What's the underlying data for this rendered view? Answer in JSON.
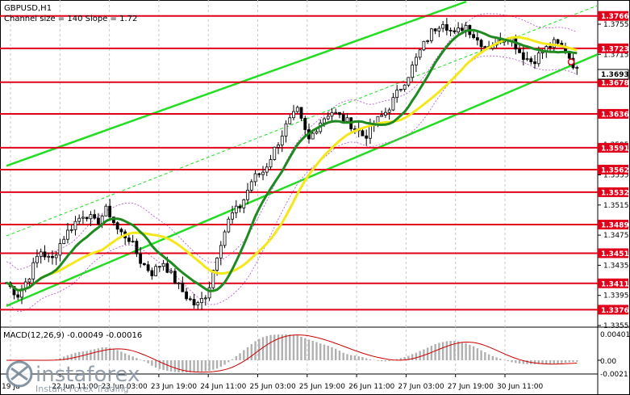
{
  "header": {
    "symbol": "GBPUSD,H1",
    "channel_info": "Channel size = 140 Slope = 1.72"
  },
  "macd": {
    "label": "MACD(12,26,9) -0.00049 -0.00016",
    "scale": [
      "0.00401",
      "0.00",
      "-0.00211"
    ]
  },
  "watermark": {
    "brand": "instaforex",
    "tagline": "Instant Forex Trading"
  },
  "colors": {
    "level_line": "#e0001a",
    "channel": "#22dd22",
    "ma_fast": "#f4e81a",
    "ma_slow": "#1f8a1f",
    "macd_signal": "#cc0000"
  },
  "chart_data": {
    "type": "candlestick",
    "ylim": [
      1.3355,
      1.3785
    ],
    "price_ticks": [
      "1.3755",
      "1.3715",
      "1.3675",
      "1.3635",
      "1.3595",
      "1.3555",
      "1.3515",
      "1.3475",
      "1.3435",
      "1.3395",
      "1.3355"
    ],
    "levels": [
      "1.3766",
      "1.3723",
      "1.3678",
      "1.3636",
      "1.3591",
      "1.3562",
      "1.3532",
      "1.3489",
      "1.3451",
      "1.3411",
      "1.3376"
    ],
    "current_price": "1.3693",
    "x_labels": [
      "19 Ju",
      "22 Jun 11:00",
      "23 Jun 03:00",
      "23 Jun 19:00",
      "24 Jun 11:00",
      "25 Jun 03:00",
      "25 Jun 19:00",
      "26 Jun 11:00",
      "27 Jun 03:00",
      "27 Jun 19:00",
      "30 Jun 11:00"
    ],
    "close_path": [
      1.3412,
      1.3395,
      1.342,
      1.3455,
      1.344,
      1.347,
      1.349,
      1.3505,
      1.349,
      1.351,
      1.348,
      1.347,
      1.344,
      1.3425,
      1.344,
      1.3415,
      1.3395,
      1.338,
      1.34,
      1.346,
      1.35,
      1.3515,
      1.355,
      1.356,
      1.359,
      1.362,
      1.364,
      1.36,
      1.3625,
      1.364,
      1.363,
      1.362,
      1.3605,
      1.3625,
      1.364,
      1.3665,
      1.369,
      1.372,
      1.3745,
      1.376,
      1.374,
      1.3755,
      1.3735,
      1.3725,
      1.3735,
      1.374,
      1.3715,
      1.3705,
      1.372,
      1.373,
      1.372,
      1.3693
    ]
  }
}
